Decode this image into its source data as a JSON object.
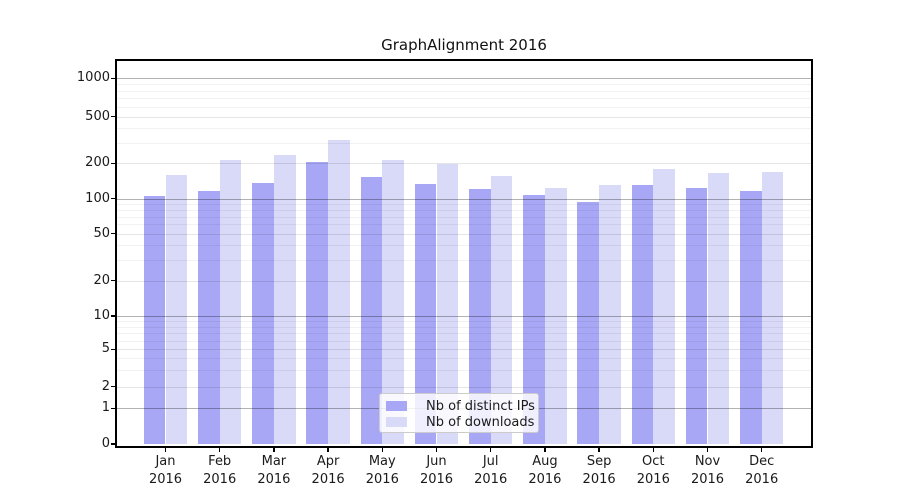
{
  "chart_data": {
    "type": "bar",
    "title": "GraphAlignment 2016",
    "year_label": "2016",
    "categories": [
      "Jan",
      "Feb",
      "Mar",
      "Apr",
      "May",
      "Jun",
      "Jul",
      "Aug",
      "Sep",
      "Oct",
      "Nov",
      "Dec"
    ],
    "series": [
      {
        "name": "Nb of distinct IPs",
        "color": "#a7a7f5",
        "values": [
          106,
          117,
          136,
          204,
          154,
          133,
          120,
          107,
          94,
          131,
          123,
          117
        ]
      },
      {
        "name": "Nb of downloads",
        "color": "#d9d9f8",
        "values": [
          159,
          213,
          236,
          315,
          214,
          197,
          156,
          124,
          131,
          178,
          166,
          169
        ]
      }
    ],
    "y_axis": {
      "ticks": [
        0,
        1,
        2,
        5,
        10,
        20,
        50,
        100,
        200,
        500,
        1000
      ],
      "minor_ticks": [
        3,
        4,
        6,
        7,
        8,
        9,
        30,
        40,
        60,
        70,
        80,
        90,
        300,
        400,
        600,
        700,
        800,
        900
      ],
      "scale": "log-like (linear below 1)",
      "ylim": [
        0,
        1400
      ]
    },
    "grid": true,
    "legend": {
      "position": "lower center",
      "entries": [
        "Nb of distinct IPs",
        "Nb of downloads"
      ]
    }
  }
}
